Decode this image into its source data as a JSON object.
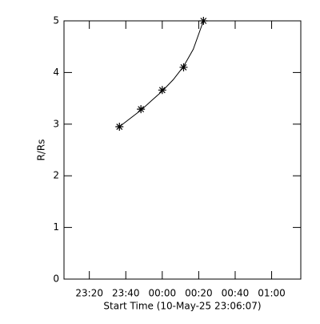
{
  "chart_data": {
    "type": "scatter",
    "xlabel": "Start Time (10-May-25 23:06:07)",
    "ylabel": "R/Rs",
    "xlim": [
      1386.1,
      1516
    ],
    "xticks": [
      {
        "value": 1400,
        "label": "23:20"
      },
      {
        "value": 1420,
        "label": "23:40"
      },
      {
        "value": 1440,
        "label": "00:00"
      },
      {
        "value": 1460,
        "label": "00:20"
      },
      {
        "value": 1480,
        "label": "00:40"
      },
      {
        "value": 1500,
        "label": "01:00"
      }
    ],
    "ylim": [
      0,
      5
    ],
    "yticks": [
      0,
      1,
      2,
      3,
      4,
      5
    ],
    "color": "#000000",
    "series": [
      {
        "x": [
          1416.5,
          1428.3,
          1440,
          1451.7,
          1462.6
        ],
        "values": [
          2.95,
          3.29,
          3.66,
          4.1,
          5.0
        ]
      }
    ],
    "fit": {
      "x": [
        1416.5,
        1422,
        1428.3,
        1434,
        1440,
        1446,
        1451.7,
        1457,
        1462.6
      ],
      "values": [
        2.95,
        3.1,
        3.27,
        3.45,
        3.64,
        3.86,
        4.12,
        4.45,
        5.0
      ]
    }
  }
}
